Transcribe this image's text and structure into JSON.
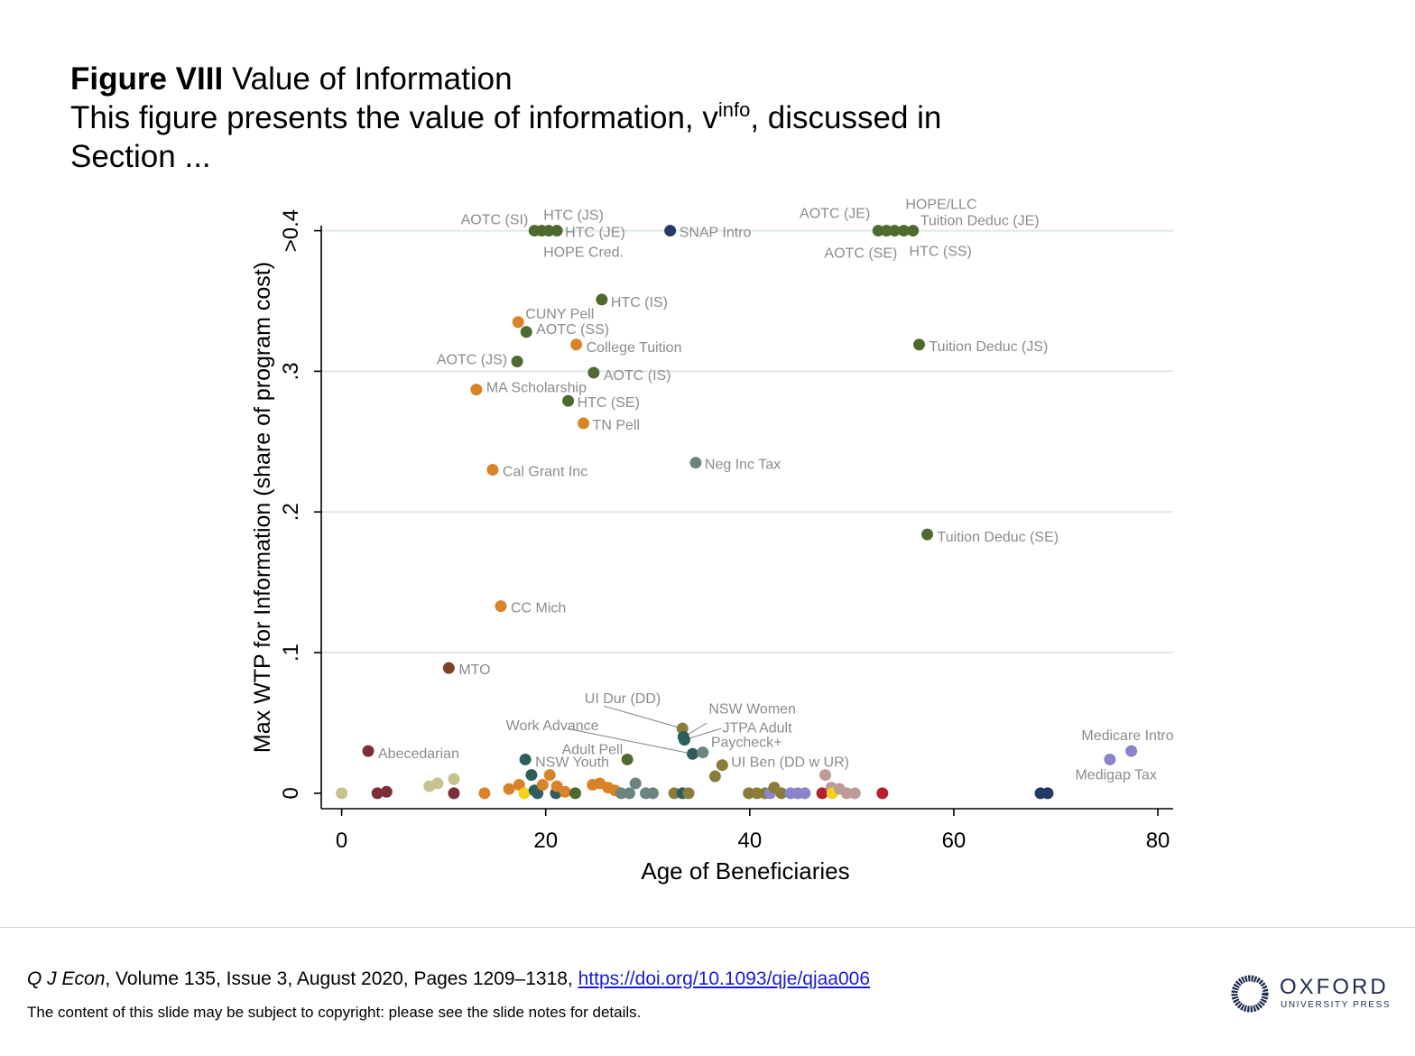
{
  "slide": {
    "figure_label": "Figure VIII",
    "figure_title": "Value of Information",
    "caption_before": "This figure presents the value of information, v",
    "caption_sup": "info",
    "caption_after": ", discussed in",
    "caption_line2": "Section ...",
    "citation_journal": "Q J Econ",
    "citation_details": ", Volume 135, Issue 3, August 2020, Pages 1209–1318, ",
    "citation_link": "https://doi.org/10.1093/qje/qjaa006",
    "copyright_note": "The content of this slide may be subject to copyright: please see the slide notes for details.",
    "logo_word": "OXFORD",
    "logo_sub": "UNIVERSITY PRESS"
  },
  "chart_data": {
    "type": "scatter",
    "title": "",
    "xlabel": "Age of Beneficiaries",
    "ylabel": "Max WTP for Information (share of program cost)",
    "xlim": [
      -2,
      81.5
    ],
    "ylim": [
      -0.011,
      0.41
    ],
    "x_ticks": [
      0,
      20,
      40,
      60,
      80
    ],
    "y_ticks": [
      {
        "value": 0,
        "label": "0"
      },
      {
        "value": 0.1,
        "label": ".1"
      },
      {
        "value": 0.2,
        "label": ".2"
      },
      {
        "value": 0.3,
        "label": ".3"
      },
      {
        "value": 0.4,
        "label": ">0.4"
      }
    ],
    "grid": "horizontal",
    "colors": {
      "olive_green": "#4e6a2e",
      "orange": "#d98328",
      "navy": "#233a66",
      "slate": "#6c847f",
      "brown": "#7c4228",
      "maroon": "#7e2e38",
      "teal": "#2e5e5e",
      "khaki": "#8a7d3a",
      "tan": "#c6c28c",
      "lavender": "#8a84cc",
      "mauve": "#bd9c98",
      "red": "#b4202e",
      "gold": "#f2d21c",
      "grid": "#dfe8ea",
      "label": "#8c8c8c"
    },
    "labeled_points": [
      {
        "label": "AOTC (SI)",
        "x": 18.9,
        "y": 0.4,
        "color": "olive_green"
      },
      {
        "label": "HTC (JS)",
        "x": 19.6,
        "y": 0.4,
        "color": "olive_green"
      },
      {
        "label": "HOPE Cred.",
        "x": 20.3,
        "y": 0.4,
        "color": "olive_green"
      },
      {
        "label": "HTC (JE)",
        "x": 21.1,
        "y": 0.4,
        "color": "olive_green"
      },
      {
        "label": "SNAP Intro",
        "x": 32.2,
        "y": 0.4,
        "color": "navy"
      },
      {
        "label": "AOTC (JE)",
        "x": 52.6,
        "y": 0.4,
        "color": "olive_green"
      },
      {
        "label": "AOTC (SE)",
        "x": 53.4,
        "y": 0.4,
        "color": "olive_green"
      },
      {
        "label": "HOPE/LLC",
        "x": 54.2,
        "y": 0.4,
        "color": "olive_green"
      },
      {
        "label": "HTC (SS)",
        "x": 55.1,
        "y": 0.4,
        "color": "olive_green"
      },
      {
        "label": "Tuition Deduc (JE)",
        "x": 56.0,
        "y": 0.4,
        "color": "olive_green"
      },
      {
        "label": "HTC (IS)",
        "x": 25.5,
        "y": 0.351,
        "color": "olive_green"
      },
      {
        "label": "CUNY Pell",
        "x": 17.3,
        "y": 0.335,
        "color": "orange"
      },
      {
        "label": "AOTC (SS)",
        "x": 18.1,
        "y": 0.328,
        "color": "olive_green"
      },
      {
        "label": "College Tuition",
        "x": 23.0,
        "y": 0.319,
        "color": "orange"
      },
      {
        "label": "Tuition Deduc (JS)",
        "x": 56.6,
        "y": 0.319,
        "color": "olive_green"
      },
      {
        "label": "AOTC (JS)",
        "x": 17.2,
        "y": 0.307,
        "color": "olive_green"
      },
      {
        "label": "AOTC (IS)",
        "x": 24.7,
        "y": 0.299,
        "color": "olive_green"
      },
      {
        "label": "MA Scholarship",
        "x": 13.2,
        "y": 0.287,
        "color": "orange"
      },
      {
        "label": "HTC (SE)",
        "x": 22.2,
        "y": 0.279,
        "color": "olive_green"
      },
      {
        "label": "TN Pell",
        "x": 23.7,
        "y": 0.263,
        "color": "orange"
      },
      {
        "label": "Neg Inc Tax",
        "x": 34.7,
        "y": 0.235,
        "color": "slate"
      },
      {
        "label": "Cal Grant Inc",
        "x": 14.8,
        "y": 0.23,
        "color": "orange"
      },
      {
        "label": "Tuition Deduc (SE)",
        "x": 57.4,
        "y": 0.184,
        "color": "olive_green"
      },
      {
        "label": "CC Mich",
        "x": 15.6,
        "y": 0.133,
        "color": "orange"
      },
      {
        "label": "MTO",
        "x": 10.5,
        "y": 0.089,
        "color": "brown"
      },
      {
        "label": "UI Dur (DD)",
        "x": 33.4,
        "y": 0.046,
        "color": "khaki"
      },
      {
        "label": "NSW Women",
        "x": 33.5,
        "y": 0.04,
        "color": "teal"
      },
      {
        "label": "JTPA Adult",
        "x": 33.6,
        "y": 0.038,
        "color": "teal"
      },
      {
        "label": "Work Advance",
        "x": 34.4,
        "y": 0.028,
        "color": "teal"
      },
      {
        "label": "Paycheck+",
        "x": 35.4,
        "y": 0.029,
        "color": "slate"
      },
      {
        "label": "Abecedarian",
        "x": 2.6,
        "y": 0.03,
        "color": "maroon"
      },
      {
        "label": "Medicare Intro",
        "x": 77.4,
        "y": 0.03,
        "color": "lavender"
      },
      {
        "label": "Medigap Tax",
        "x": 75.3,
        "y": 0.024,
        "color": "lavender"
      },
      {
        "label": "NSW Youth",
        "x": 18.0,
        "y": 0.024,
        "color": "teal"
      },
      {
        "label": "Adult Pell",
        "x": 28.0,
        "y": 0.024,
        "color": "olive_green"
      },
      {
        "label": "UI Ben (DD w UR)",
        "x": 37.3,
        "y": 0.02,
        "color": "khaki"
      }
    ],
    "label_placement": [
      {
        "dx": -7,
        "dy": -13,
        "anchor": "end"
      },
      {
        "dx": 2,
        "dy": -18,
        "anchor": "start"
      },
      {
        "dx": -6,
        "dy": 23,
        "anchor": "start"
      },
      {
        "dx": 9,
        "dy": 1,
        "anchor": "start"
      },
      {
        "dx": 10,
        "dy": 1,
        "anchor": "start"
      },
      {
        "dx": -9,
        "dy": -20,
        "anchor": "end"
      },
      {
        "dx": 12,
        "dy": 24,
        "anchor": "end"
      },
      {
        "dx": 12,
        "dy": -30,
        "anchor": "start"
      },
      {
        "dx": 6,
        "dy": 22,
        "anchor": "start"
      },
      {
        "dx": 8,
        "dy": -12,
        "anchor": "start"
      },
      {
        "dx": 10,
        "dy": 2,
        "anchor": "start"
      },
      {
        "dx": 8,
        "dy": -10,
        "anchor": "start"
      },
      {
        "dx": 11,
        "dy": -4,
        "anchor": "start"
      },
      {
        "dx": 11,
        "dy": 2,
        "anchor": "start"
      },
      {
        "dx": 11,
        "dy": 1,
        "anchor": "start"
      },
      {
        "dx": -11,
        "dy": -3,
        "anchor": "end"
      },
      {
        "dx": 11,
        "dy": 2,
        "anchor": "start"
      },
      {
        "dx": 11,
        "dy": -3,
        "anchor": "start"
      },
      {
        "dx": 10,
        "dy": 1,
        "anchor": "start"
      },
      {
        "dx": 10,
        "dy": 1,
        "anchor": "start"
      },
      {
        "dx": 10,
        "dy": 1,
        "anchor": "start"
      },
      {
        "dx": 11,
        "dy": 1,
        "anchor": "start"
      },
      {
        "dx": 11,
        "dy": 2,
        "anchor": "start"
      },
      {
        "dx": 11,
        "dy": 1,
        "anchor": "start"
      },
      {
        "dx": 11,
        "dy": 1,
        "anchor": "start"
      },
      {
        "dx": -24,
        "dy": -34,
        "anchor": "end"
      },
      {
        "dx": 28,
        "dy": -32,
        "anchor": "start"
      },
      {
        "dx": 42,
        "dy": -14,
        "anchor": "start"
      },
      {
        "dx": -104,
        "dy": -32,
        "anchor": "end"
      },
      {
        "dx": 9,
        "dy": -12,
        "anchor": "start"
      },
      {
        "dx": 11,
        "dy": 2,
        "anchor": "start"
      },
      {
        "dx": 47,
        "dy": -18,
        "anchor": "end"
      },
      {
        "dx": 52,
        "dy": 16,
        "anchor": "end"
      },
      {
        "dx": 11,
        "dy": 2,
        "anchor": "start"
      },
      {
        "dx": -5,
        "dy": -12,
        "anchor": "end"
      },
      {
        "dx": 10,
        "dy": -4,
        "anchor": "start"
      }
    ],
    "leader_lines": [
      {
        "from_x": 33.4,
        "from_y": 0.046,
        "to_x": 25.7,
        "to_y": 0.062
      },
      {
        "from_x": 33.5,
        "from_y": 0.04,
        "to_x": 35.8,
        "to_y": 0.05
      },
      {
        "from_x": 33.6,
        "from_y": 0.038,
        "to_x": 37.2,
        "to_y": 0.046
      },
      {
        "from_x": 34.4,
        "from_y": 0.028,
        "to_x": 22.1,
        "to_y": 0.046
      }
    ],
    "unlabeled_points": [
      {
        "x": 0.0,
        "y": 0.0,
        "color": "tan"
      },
      {
        "x": 3.5,
        "y": 0.0,
        "color": "maroon"
      },
      {
        "x": 4.4,
        "y": 0.001,
        "color": "maroon"
      },
      {
        "x": 8.6,
        "y": 0.005,
        "color": "tan"
      },
      {
        "x": 9.4,
        "y": 0.007,
        "color": "tan"
      },
      {
        "x": 11.0,
        "y": 0.01,
        "color": "tan"
      },
      {
        "x": 11.0,
        "y": 0.0,
        "color": "maroon"
      },
      {
        "x": 14.0,
        "y": 0.0,
        "color": "orange"
      },
      {
        "x": 16.4,
        "y": 0.003,
        "color": "orange"
      },
      {
        "x": 17.4,
        "y": 0.006,
        "color": "orange"
      },
      {
        "x": 17.9,
        "y": 0.0,
        "color": "gold"
      },
      {
        "x": 18.6,
        "y": 0.013,
        "color": "teal"
      },
      {
        "x": 18.9,
        "y": 0.002,
        "color": "teal"
      },
      {
        "x": 19.2,
        "y": 0.0,
        "color": "teal"
      },
      {
        "x": 19.7,
        "y": 0.006,
        "color": "orange"
      },
      {
        "x": 20.4,
        "y": 0.013,
        "color": "orange"
      },
      {
        "x": 21.0,
        "y": 0.0,
        "color": "teal"
      },
      {
        "x": 21.1,
        "y": 0.005,
        "color": "orange"
      },
      {
        "x": 21.9,
        "y": 0.001,
        "color": "orange"
      },
      {
        "x": 22.9,
        "y": 0.0,
        "color": "olive_green"
      },
      {
        "x": 24.6,
        "y": 0.006,
        "color": "orange"
      },
      {
        "x": 25.3,
        "y": 0.007,
        "color": "orange"
      },
      {
        "x": 26.1,
        "y": 0.004,
        "color": "orange"
      },
      {
        "x": 26.8,
        "y": 0.002,
        "color": "orange"
      },
      {
        "x": 27.4,
        "y": 0.0,
        "color": "slate"
      },
      {
        "x": 28.2,
        "y": 0.0,
        "color": "slate"
      },
      {
        "x": 28.8,
        "y": 0.007,
        "color": "slate"
      },
      {
        "x": 29.8,
        "y": 0.0,
        "color": "slate"
      },
      {
        "x": 30.5,
        "y": 0.0,
        "color": "slate"
      },
      {
        "x": 32.6,
        "y": 0.0,
        "color": "khaki"
      },
      {
        "x": 33.4,
        "y": 0.0,
        "color": "teal"
      },
      {
        "x": 34.0,
        "y": 0.0,
        "color": "khaki"
      },
      {
        "x": 36.6,
        "y": 0.012,
        "color": "khaki"
      },
      {
        "x": 39.9,
        "y": 0.0,
        "color": "khaki"
      },
      {
        "x": 40.7,
        "y": 0.0,
        "color": "khaki"
      },
      {
        "x": 41.5,
        "y": 0.0,
        "color": "khaki"
      },
      {
        "x": 42.0,
        "y": 0.0,
        "color": "lavender"
      },
      {
        "x": 42.4,
        "y": 0.004,
        "color": "khaki"
      },
      {
        "x": 43.1,
        "y": 0.0,
        "color": "khaki"
      },
      {
        "x": 44.0,
        "y": 0.0,
        "color": "lavender"
      },
      {
        "x": 44.7,
        "y": 0.0,
        "color": "lavender"
      },
      {
        "x": 45.4,
        "y": 0.0,
        "color": "lavender"
      },
      {
        "x": 47.1,
        "y": 0.0,
        "color": "red"
      },
      {
        "x": 47.4,
        "y": 0.013,
        "color": "mauve"
      },
      {
        "x": 48.0,
        "y": 0.004,
        "color": "mauve"
      },
      {
        "x": 48.1,
        "y": 0.0,
        "color": "gold"
      },
      {
        "x": 48.8,
        "y": 0.003,
        "color": "mauve"
      },
      {
        "x": 49.5,
        "y": 0.0,
        "color": "mauve"
      },
      {
        "x": 50.3,
        "y": 0.0,
        "color": "mauve"
      },
      {
        "x": 53.0,
        "y": 0.0,
        "color": "red"
      },
      {
        "x": 68.5,
        "y": 0.0,
        "color": "navy"
      },
      {
        "x": 69.2,
        "y": 0.0,
        "color": "navy"
      }
    ]
  }
}
